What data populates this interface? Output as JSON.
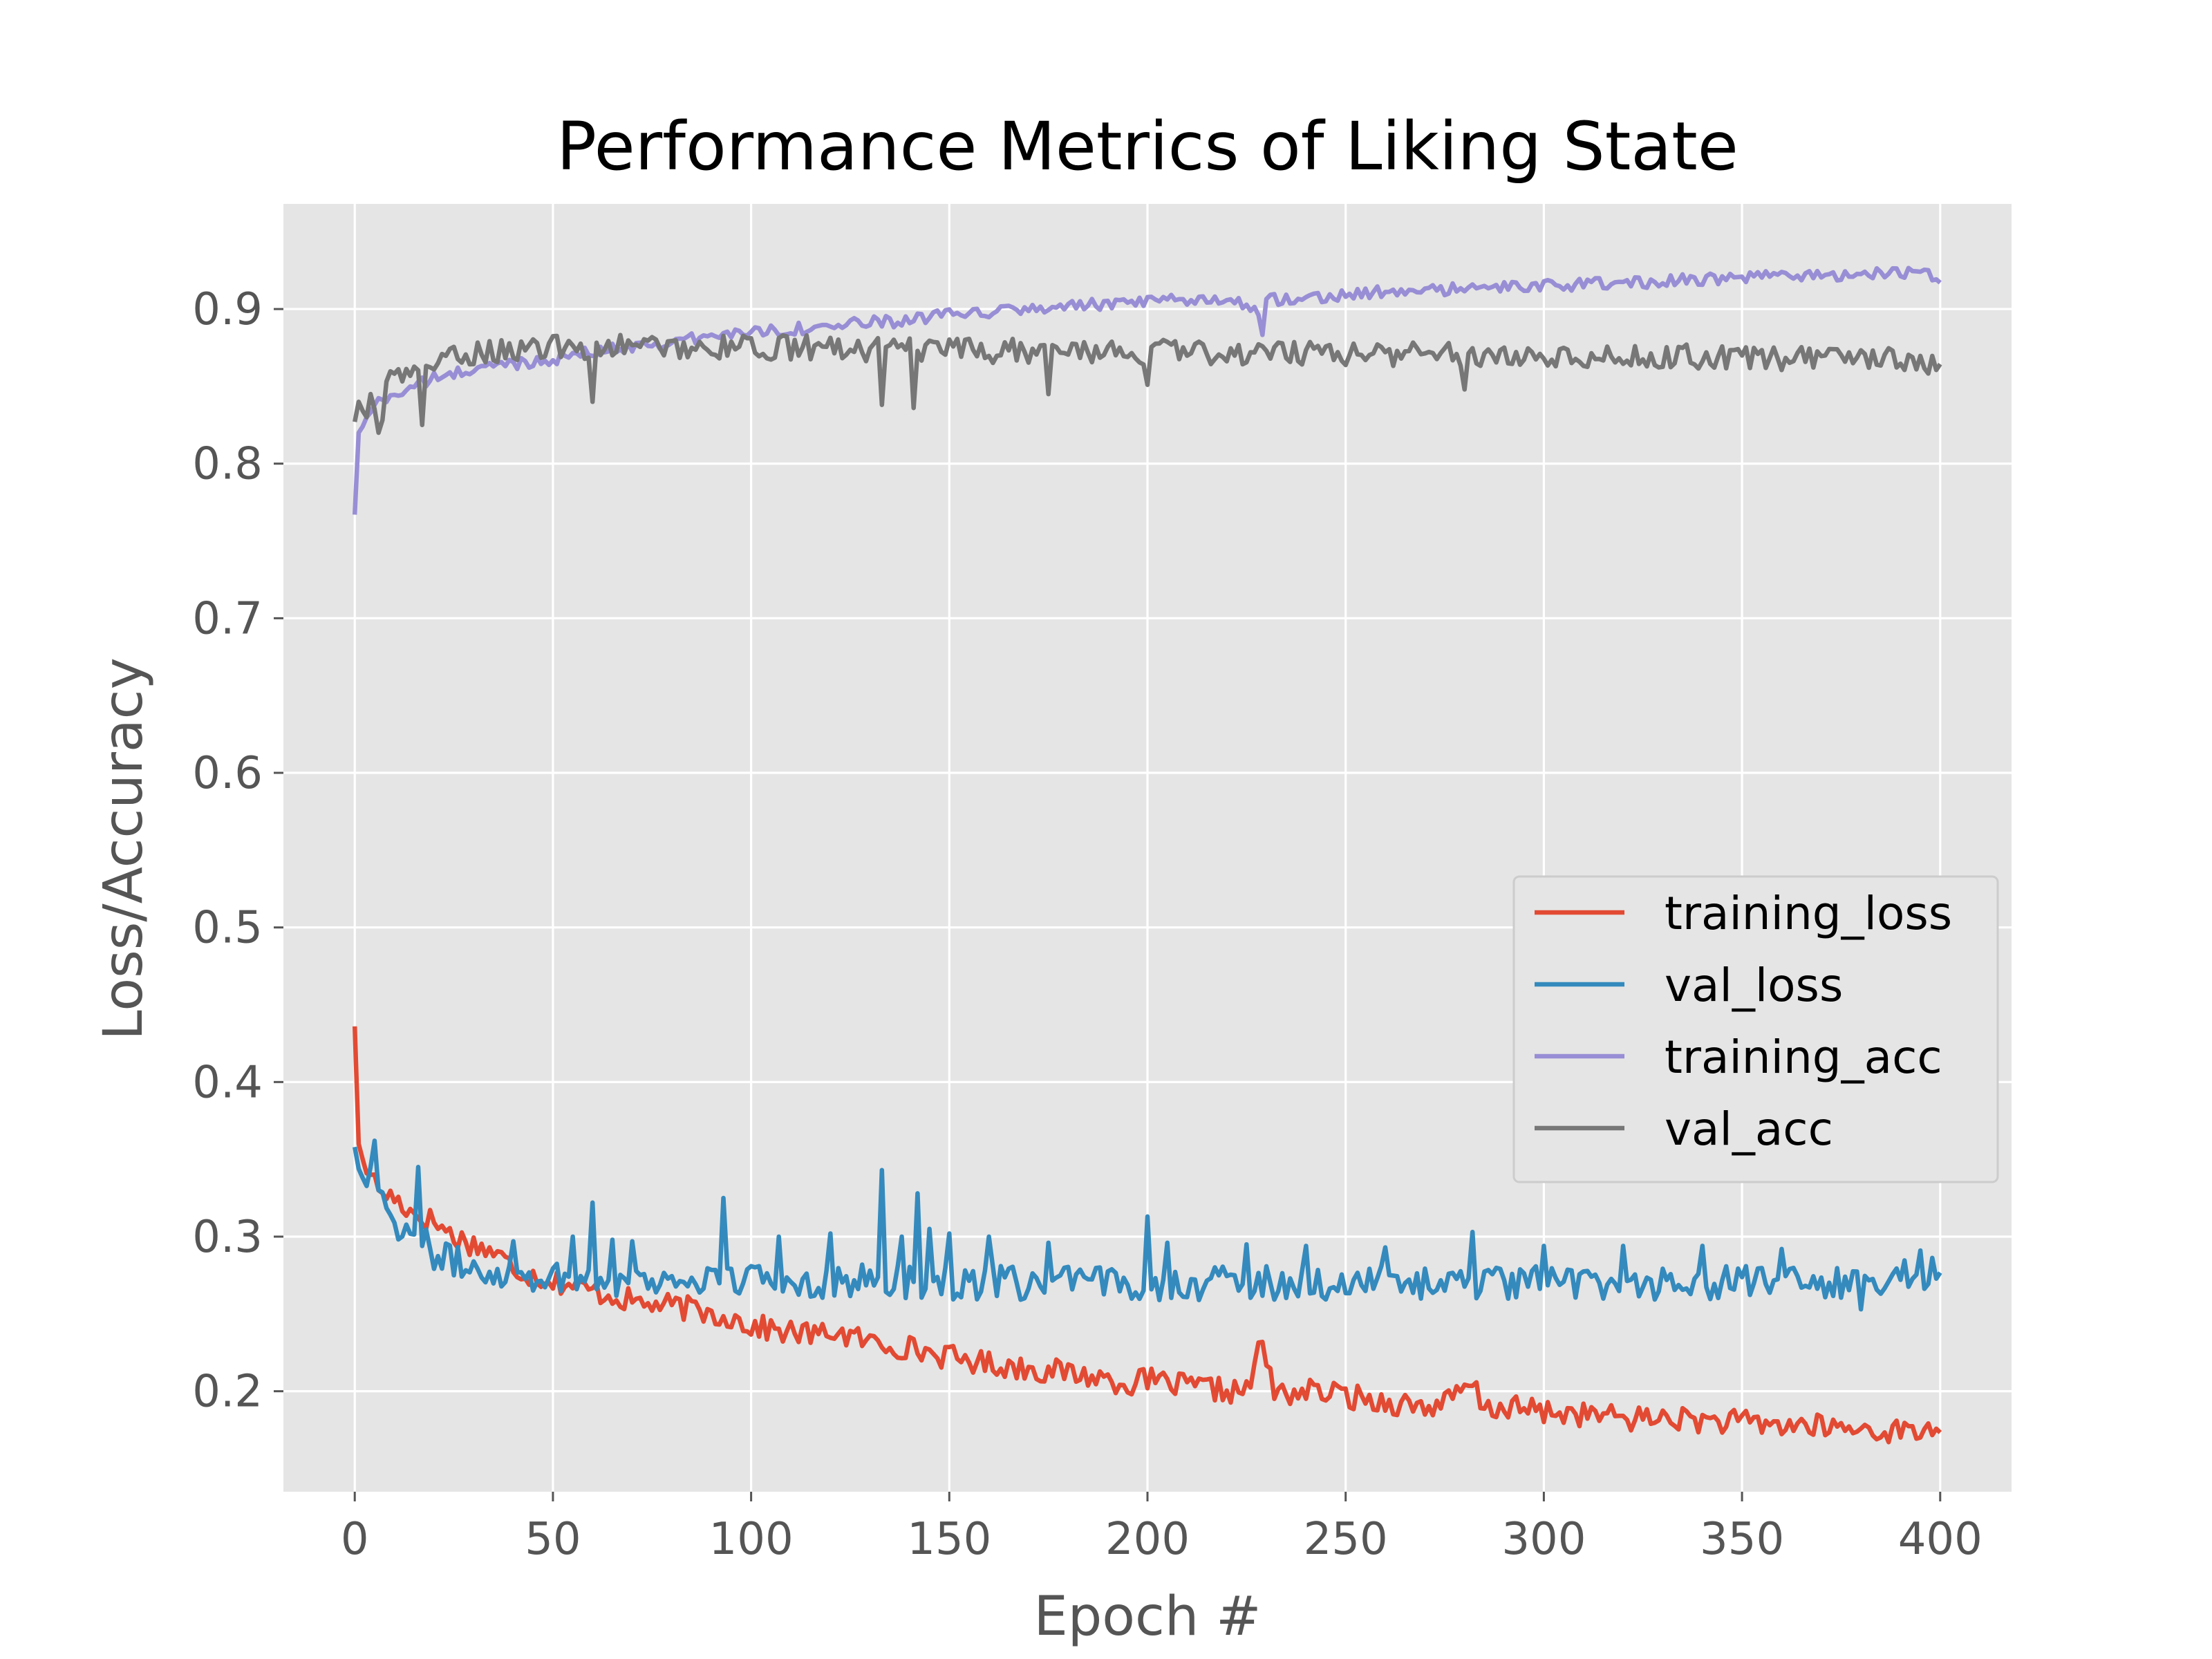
{
  "chart_data": {
    "type": "line",
    "title": "Performance Metrics of Liking State",
    "xlabel": "Epoch #",
    "ylabel": "Loss/Accuracy",
    "xlim": [
      -18,
      418
    ],
    "ylim": [
      0.135,
      0.968
    ],
    "xticks": [
      0,
      50,
      100,
      150,
      200,
      250,
      300,
      350,
      400
    ],
    "yticks": [
      0.2,
      0.3,
      0.4,
      0.5,
      0.6,
      0.7,
      0.8,
      0.9
    ],
    "grid": true,
    "legend_position": "center-right",
    "style": {
      "plot_background": "#e5e5e5",
      "grid_color": "#ffffff",
      "legend_background": "#e5e5e5",
      "legend_border": "#cccccc"
    },
    "series": [
      {
        "name": "training_loss",
        "color": "#e24a33",
        "points": [
          [
            0,
            0.436
          ],
          [
            1,
            0.36
          ],
          [
            2,
            0.35
          ],
          [
            4,
            0.34
          ],
          [
            6,
            0.33
          ],
          [
            10,
            0.325
          ],
          [
            15,
            0.315
          ],
          [
            20,
            0.31
          ],
          [
            25,
            0.3
          ],
          [
            30,
            0.295
          ],
          [
            35,
            0.29
          ],
          [
            40,
            0.28
          ],
          [
            45,
            0.275
          ],
          [
            50,
            0.272
          ],
          [
            55,
            0.268
          ],
          [
            60,
            0.265
          ],
          [
            65,
            0.262
          ],
          [
            70,
            0.258
          ],
          [
            75,
            0.256
          ],
          [
            80,
            0.255
          ],
          [
            85,
            0.253
          ],
          [
            90,
            0.25
          ],
          [
            95,
            0.248
          ],
          [
            100,
            0.242
          ],
          [
            105,
            0.24
          ],
          [
            110,
            0.238
          ],
          [
            115,
            0.237
          ],
          [
            118,
            0.236
          ],
          [
            120,
            0.24
          ],
          [
            125,
            0.235
          ],
          [
            130,
            0.232
          ],
          [
            135,
            0.23
          ],
          [
            140,
            0.228
          ],
          [
            145,
            0.225
          ],
          [
            150,
            0.222
          ],
          [
            155,
            0.22
          ],
          [
            160,
            0.218
          ],
          [
            165,
            0.216
          ],
          [
            170,
            0.215
          ],
          [
            175,
            0.213
          ],
          [
            180,
            0.212
          ],
          [
            185,
            0.21
          ],
          [
            190,
            0.208
          ],
          [
            195,
            0.205
          ],
          [
            200,
            0.207
          ],
          [
            205,
            0.205
          ],
          [
            210,
            0.203
          ],
          [
            215,
            0.202
          ],
          [
            220,
            0.2
          ],
          [
            225,
            0.2
          ],
          [
            229,
            0.232
          ],
          [
            232,
            0.198
          ],
          [
            240,
            0.2
          ],
          [
            245,
            0.199
          ],
          [
            250,
            0.197
          ],
          [
            255,
            0.195
          ],
          [
            260,
            0.193
          ],
          [
            265,
            0.192
          ],
          [
            270,
            0.19
          ],
          [
            275,
            0.192
          ],
          [
            282,
            0.204
          ],
          [
            285,
            0.188
          ],
          [
            290,
            0.19
          ],
          [
            295,
            0.188
          ],
          [
            300,
            0.187
          ],
          [
            305,
            0.186
          ],
          [
            310,
            0.185
          ],
          [
            315,
            0.184
          ],
          [
            320,
            0.183
          ],
          [
            325,
            0.182
          ],
          [
            330,
            0.183
          ],
          [
            335,
            0.182
          ],
          [
            340,
            0.181
          ],
          [
            345,
            0.18
          ],
          [
            350,
            0.18
          ],
          [
            355,
            0.179
          ],
          [
            360,
            0.178
          ],
          [
            365,
            0.178
          ],
          [
            370,
            0.177
          ],
          [
            375,
            0.176
          ],
          [
            380,
            0.175
          ],
          [
            385,
            0.175
          ],
          [
            390,
            0.174
          ],
          [
            395,
            0.174
          ],
          [
            400,
            0.178
          ]
        ],
        "noise": 0.008
      },
      {
        "name": "val_loss",
        "color": "#348abd",
        "points": [
          [
            0,
            0.358
          ],
          [
            2,
            0.338
          ],
          [
            4,
            0.345
          ],
          [
            6,
            0.33
          ],
          [
            10,
            0.31
          ],
          [
            15,
            0.3
          ],
          [
            20,
            0.29
          ],
          [
            25,
            0.283
          ],
          [
            30,
            0.28
          ],
          [
            35,
            0.278
          ],
          [
            40,
            0.276
          ],
          [
            45,
            0.275
          ],
          [
            50,
            0.274
          ],
          [
            60,
            0.273
          ],
          [
            70,
            0.272
          ],
          [
            80,
            0.272
          ],
          [
            90,
            0.272
          ],
          [
            100,
            0.272
          ],
          [
            110,
            0.272
          ],
          [
            120,
            0.271
          ],
          [
            130,
            0.271
          ],
          [
            140,
            0.271
          ],
          [
            150,
            0.27
          ],
          [
            160,
            0.27
          ],
          [
            170,
            0.27
          ],
          [
            180,
            0.27
          ],
          [
            190,
            0.27
          ],
          [
            200,
            0.27
          ],
          [
            220,
            0.27
          ],
          [
            240,
            0.27
          ],
          [
            260,
            0.27
          ],
          [
            280,
            0.27
          ],
          [
            300,
            0.27
          ],
          [
            320,
            0.27
          ],
          [
            340,
            0.27
          ],
          [
            360,
            0.27
          ],
          [
            380,
            0.27
          ],
          [
            400,
            0.279
          ]
        ],
        "noise": 0.011,
        "spikes": [
          [
            5,
            0.362
          ],
          [
            16,
            0.345
          ],
          [
            40,
            0.297
          ],
          [
            55,
            0.3
          ],
          [
            60,
            0.322
          ],
          [
            65,
            0.298
          ],
          [
            70,
            0.297
          ],
          [
            93,
            0.325
          ],
          [
            107,
            0.3
          ],
          [
            120,
            0.302
          ],
          [
            133,
            0.343
          ],
          [
            138,
            0.3
          ],
          [
            142,
            0.328
          ],
          [
            145,
            0.305
          ],
          [
            150,
            0.302
          ],
          [
            160,
            0.3
          ],
          [
            175,
            0.296
          ],
          [
            200,
            0.313
          ],
          [
            205,
            0.296
          ],
          [
            225,
            0.295
          ],
          [
            240,
            0.294
          ],
          [
            260,
            0.293
          ],
          [
            282,
            0.303
          ],
          [
            300,
            0.294
          ],
          [
            320,
            0.294
          ],
          [
            340,
            0.294
          ],
          [
            360,
            0.292
          ],
          [
            380,
            0.253
          ],
          [
            395,
            0.291
          ]
        ]
      },
      {
        "name": "training_acc",
        "color": "#988ed5",
        "points": [
          [
            0,
            0.767
          ],
          [
            1,
            0.82
          ],
          [
            3,
            0.83
          ],
          [
            5,
            0.838
          ],
          [
            10,
            0.845
          ],
          [
            15,
            0.85
          ],
          [
            20,
            0.855
          ],
          [
            25,
            0.858
          ],
          [
            30,
            0.861
          ],
          [
            35,
            0.863
          ],
          [
            40,
            0.865
          ],
          [
            45,
            0.866
          ],
          [
            50,
            0.868
          ],
          [
            60,
            0.872
          ],
          [
            70,
            0.876
          ],
          [
            80,
            0.879
          ],
          [
            90,
            0.882
          ],
          [
            100,
            0.886
          ],
          [
            110,
            0.887
          ],
          [
            120,
            0.889
          ],
          [
            130,
            0.891
          ],
          [
            140,
            0.893
          ],
          [
            150,
            0.896
          ],
          [
            160,
            0.898
          ],
          [
            170,
            0.9
          ],
          [
            180,
            0.902
          ],
          [
            190,
            0.903
          ],
          [
            200,
            0.904
          ],
          [
            210,
            0.906
          ],
          [
            220,
            0.907
          ],
          [
            228,
            0.9
          ],
          [
            229,
            0.886
          ],
          [
            230,
            0.906
          ],
          [
            240,
            0.908
          ],
          [
            250,
            0.909
          ],
          [
            260,
            0.911
          ],
          [
            270,
            0.912
          ],
          [
            280,
            0.913
          ],
          [
            290,
            0.914
          ],
          [
            300,
            0.915
          ],
          [
            310,
            0.916
          ],
          [
            320,
            0.917
          ],
          [
            330,
            0.918
          ],
          [
            340,
            0.919
          ],
          [
            350,
            0.92
          ],
          [
            360,
            0.921
          ],
          [
            370,
            0.922
          ],
          [
            380,
            0.923
          ],
          [
            390,
            0.924
          ],
          [
            400,
            0.92
          ]
        ],
        "noise": 0.004
      },
      {
        "name": "val_acc",
        "color": "#777777",
        "points": [
          [
            0,
            0.827
          ],
          [
            1,
            0.84
          ],
          [
            3,
            0.83
          ],
          [
            4,
            0.845
          ],
          [
            6,
            0.82
          ],
          [
            8,
            0.85
          ],
          [
            10,
            0.855
          ],
          [
            15,
            0.86
          ],
          [
            20,
            0.865
          ],
          [
            25,
            0.868
          ],
          [
            30,
            0.872
          ],
          [
            40,
            0.874
          ],
          [
            50,
            0.875
          ],
          [
            60,
            0.875
          ],
          [
            70,
            0.876
          ],
          [
            80,
            0.876
          ],
          [
            90,
            0.875
          ],
          [
            100,
            0.875
          ],
          [
            110,
            0.875
          ],
          [
            120,
            0.875
          ],
          [
            130,
            0.874
          ],
          [
            140,
            0.873
          ],
          [
            150,
            0.873
          ],
          [
            160,
            0.873
          ],
          [
            170,
            0.873
          ],
          [
            180,
            0.873
          ],
          [
            190,
            0.872
          ],
          [
            200,
            0.872
          ],
          [
            220,
            0.872
          ],
          [
            240,
            0.872
          ],
          [
            260,
            0.871
          ],
          [
            280,
            0.871
          ],
          [
            300,
            0.87
          ],
          [
            320,
            0.87
          ],
          [
            340,
            0.869
          ],
          [
            360,
            0.868
          ],
          [
            380,
            0.867
          ],
          [
            390,
            0.868
          ],
          [
            400,
            0.864
          ]
        ],
        "noise": 0.008,
        "spikes": [
          [
            17,
            0.825
          ],
          [
            60,
            0.84
          ],
          [
            133,
            0.838
          ],
          [
            141,
            0.836
          ],
          [
            175,
            0.845
          ],
          [
            200,
            0.851
          ],
          [
            280,
            0.848
          ]
        ]
      }
    ]
  }
}
